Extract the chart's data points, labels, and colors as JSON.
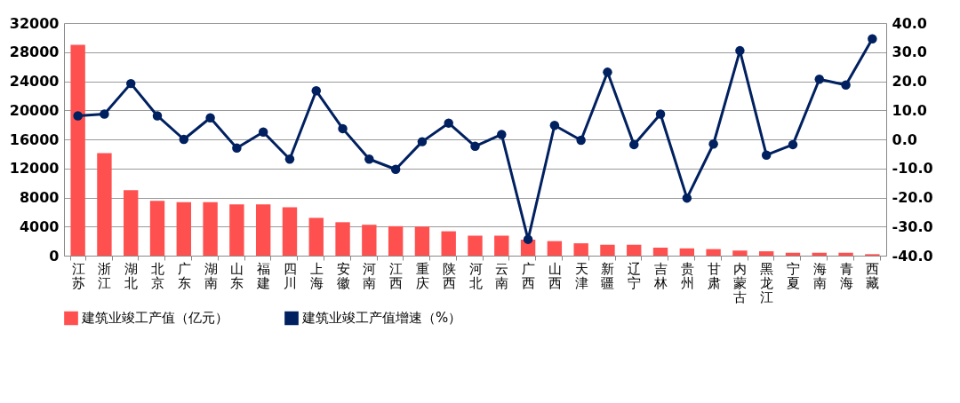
{
  "chart_data": {
    "type": "bar",
    "categories": [
      "江苏",
      "浙江",
      "湖北",
      "北京",
      "广东",
      "湖南",
      "山东",
      "福建",
      "四川",
      "上海",
      "安徽",
      "河南",
      "江西",
      "重庆",
      "陕西",
      "河北",
      "云南",
      "广西",
      "山西",
      "天津",
      "新疆",
      "辽宁",
      "吉林",
      "贵州",
      "甘肃",
      "内蒙古",
      "黑龙江",
      "宁夏",
      "海南",
      "青海",
      "西藏"
    ],
    "series": [
      {
        "name": "建筑业竣工产值（亿元）",
        "color": "#ff5050",
        "values": [
          29000,
          14100,
          9000,
          7550,
          7350,
          7350,
          7050,
          7050,
          6650,
          5200,
          4600,
          4250,
          4050,
          4000,
          3350,
          2750,
          2750,
          2200,
          2000,
          1700,
          1500,
          1500,
          1100,
          1000,
          900,
          700,
          600,
          400,
          400,
          400,
          200
        ]
      },
      {
        "name": "建筑业竣工产值增速（%）",
        "type": "line",
        "axis": "y2",
        "color": "#002060",
        "values": [
          8.1,
          8.7,
          19.2,
          8.1,
          0.0,
          7.4,
          -3.0,
          2.5,
          -6.8,
          16.7,
          3.7,
          -6.8,
          -10.3,
          -0.8,
          5.6,
          -2.4,
          1.7,
          -34.4,
          4.8,
          -0.3,
          23.1,
          -1.8,
          8.7,
          -20.2,
          -1.6,
          30.5,
          -5.4,
          -1.8,
          20.7,
          18.7,
          34.6
        ]
      }
    ],
    "ylim": [
      0,
      32000
    ],
    "yticks": [
      0,
      4000,
      8000,
      12000,
      16000,
      20000,
      24000,
      28000,
      32000
    ],
    "y2lim": [
      -40,
      40
    ],
    "y2ticks": [
      {
        "value": -40,
        "label": "-40.0"
      },
      {
        "value": -30,
        "label": "-30.0"
      },
      {
        "value": -20,
        "label": "-20.0"
      },
      {
        "value": -10,
        "label": "-10.0"
      },
      {
        "value": 0,
        "label": "0.0"
      },
      {
        "value": 10,
        "label": "10.0"
      },
      {
        "value": 20,
        "label": "20.0"
      },
      {
        "value": 30,
        "label": "30.0"
      },
      {
        "value": 40,
        "label": "40.0"
      }
    ],
    "grid": "y",
    "legend": "bottom",
    "marker": "circle",
    "line_style": "solid"
  }
}
